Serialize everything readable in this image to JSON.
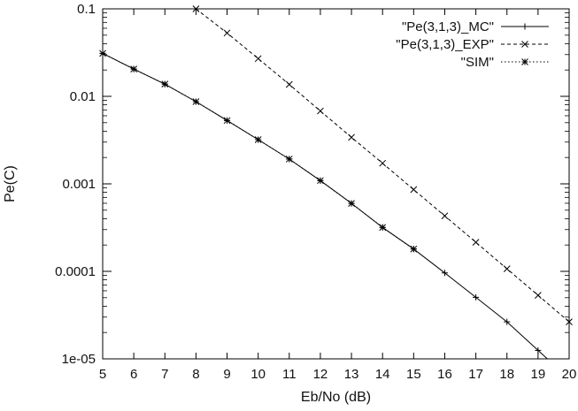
{
  "chart_data": {
    "type": "line",
    "title": "",
    "xlabel": "Eb/No (dB)",
    "ylabel": "Pe(C)",
    "xlim": [
      5,
      20
    ],
    "ylim": [
      1e-05,
      0.1
    ],
    "y_scale": "log",
    "grid": false,
    "legend_position": "top-right",
    "x_ticks": [
      "5",
      "6",
      "7",
      "8",
      "9",
      "10",
      "11",
      "12",
      "13",
      "14",
      "15",
      "16",
      "17",
      "18",
      "19",
      "20"
    ],
    "y_ticks": [
      {
        "value": 0.1,
        "label": "0.1"
      },
      {
        "value": 0.01,
        "label": "0.01"
      },
      {
        "value": 0.001,
        "label": "0.001"
      },
      {
        "value": 0.0001,
        "label": "0.0001"
      },
      {
        "value": 1e-05,
        "label": "1e-05"
      }
    ],
    "series": [
      {
        "name": "\"Pe(3,1,3)_MC\"",
        "marker": "plus",
        "line": "solid",
        "x": [
          5,
          6,
          7,
          8,
          9,
          10,
          11,
          12,
          13,
          14,
          15,
          16,
          17,
          18,
          19,
          19.3
        ],
        "y": [
          0.031,
          0.0205,
          0.0138,
          0.0087,
          0.0053,
          0.0032,
          0.00192,
          0.00109,
          0.000598,
          0.000318,
          0.00018,
          9.6e-05,
          5.05e-05,
          2.65e-05,
          1.25e-05,
          1e-05
        ]
      },
      {
        "name": "\"Pe(3,1,3)_EXP\"",
        "marker": "cross",
        "line": "dashed",
        "x": [
          8,
          9,
          10,
          11,
          12,
          13,
          14,
          15,
          16,
          17,
          18,
          19,
          20
        ],
        "y": [
          0.1,
          0.053,
          0.027,
          0.0137,
          0.0068,
          0.0034,
          0.00172,
          0.00086,
          0.00043,
          0.000215,
          0.000107,
          5.32e-05,
          2.65e-05
        ]
      },
      {
        "name": "\"SIM\"",
        "marker": "star",
        "line": "dotted",
        "x": [
          5,
          6,
          7,
          8,
          9,
          10,
          11,
          12,
          13,
          14,
          15
        ],
        "y": [
          0.031,
          0.0205,
          0.0138,
          0.0087,
          0.0053,
          0.0032,
          0.00192,
          0.00109,
          0.000598,
          0.000318,
          0.00018
        ]
      }
    ]
  }
}
